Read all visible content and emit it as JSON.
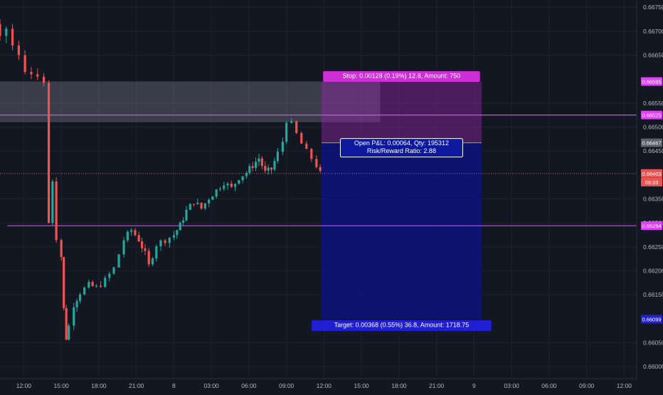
{
  "chart_data": {
    "type": "candlestick",
    "y_axis": {
      "range": [
        0.65975,
        0.66765
      ],
      "ticks": [
        "0.66750",
        "0.66700",
        "0.66650",
        "0.66550",
        "0.66500",
        "0.66450",
        "0.66350",
        "0.66300",
        "0.66250",
        "0.66200",
        "0.66150",
        "0.66050",
        "0.66000"
      ]
    },
    "x_axis": {
      "labels": [
        {
          "text": "12:00",
          "hours": 12
        },
        {
          "text": "15:00",
          "hours": 15
        },
        {
          "text": "18:00",
          "hours": 18
        },
        {
          "text": "21:00",
          "hours": 21
        },
        {
          "text": "8",
          "hours": 24
        },
        {
          "text": "03:00",
          "hours": 27
        },
        {
          "text": "06:00",
          "hours": 30
        },
        {
          "text": "09:00",
          "hours": 33
        },
        {
          "text": "12:00",
          "hours": 36
        },
        {
          "text": "15:00",
          "hours": 39
        },
        {
          "text": "18:00",
          "hours": 42
        },
        {
          "text": "21:00",
          "hours": 45
        },
        {
          "text": "9",
          "hours": 48
        },
        {
          "text": "03:00",
          "hours": 51
        },
        {
          "text": "06:00",
          "hours": 54
        },
        {
          "text": "09:00",
          "hours": 57
        },
        {
          "text": "12:00",
          "hours": 60
        }
      ],
      "range_hours": [
        10.1,
        61.0
      ]
    },
    "price_labels": [
      {
        "text": "0.66595",
        "value": 0.66595,
        "color": "#e040fb"
      },
      {
        "text": "0.66525",
        "value": 0.66525,
        "color": "#e040fb"
      },
      {
        "text": "0.66467",
        "value": 0.66467,
        "color": "#5d606b"
      },
      {
        "text": "0.66403",
        "value": 0.66403,
        "color": "#ef5350"
      },
      {
        "text": "09:33",
        "value": 0.66385,
        "color": "#ef5350"
      },
      {
        "text": "0.66294",
        "value": 0.66294,
        "color": "#e040fb"
      },
      {
        "text": "0.66099",
        "value": 0.66099,
        "color": "#2222cc"
      }
    ],
    "horizontal_lines": [
      {
        "value": 0.66525,
        "color": "#e040fb",
        "from_hours": 10.1
      },
      {
        "value": 0.66294,
        "color": "#e040fb",
        "from_hours": 10.7
      },
      {
        "value": 0.66403,
        "color": "#ef5350",
        "dotted": true,
        "from_hours": 10.1
      }
    ],
    "supply_zone": {
      "y_top": 0.66595,
      "y_bottom": 0.6651,
      "x_from_hours": 10.1,
      "x_to_hours": 40.5
    },
    "position": {
      "type": "long",
      "entry": 0.66467,
      "stop": 0.66595,
      "target": 0.66099,
      "x_from_hours": 35.8,
      "x_to_hours": 48.6,
      "stop_label": "Stop: 0.00128 (0.19%) 12.8, Amount: 750",
      "pnl_line1": "Open P&L: 0.00064, Qty: 195312",
      "pnl_line2": "Risk/Reward Ratio: 2.88",
      "target_label": "Target: 0.00368 (0.55%) 36.8, Amount: 1718.75"
    },
    "candles_intro": [
      {
        "t": 10.1,
        "o": 0.66715,
        "h": 0.66725,
        "l": 0.6668,
        "c": 0.6669
      },
      {
        "t": 10.6,
        "o": 0.6669,
        "h": 0.6671,
        "l": 0.66675,
        "c": 0.66705
      },
      {
        "t": 11.1,
        "o": 0.66705,
        "h": 0.66715,
        "l": 0.6666,
        "c": 0.6667
      },
      {
        "t": 11.6,
        "o": 0.6667,
        "h": 0.6668,
        "l": 0.6664,
        "c": 0.6665
      },
      {
        "t": 12.1,
        "o": 0.6665,
        "h": 0.6666,
        "l": 0.6661,
        "c": 0.66615
      },
      {
        "t": 12.6,
        "o": 0.66615,
        "h": 0.66625,
        "l": 0.666,
        "c": 0.6661
      },
      {
        "t": 13.1,
        "o": 0.6661,
        "h": 0.66622,
        "l": 0.66598,
        "c": 0.66605
      },
      {
        "t": 13.6,
        "o": 0.66605,
        "h": 0.66612,
        "l": 0.66585,
        "c": 0.66592
      }
    ],
    "path_points": [
      [
        13.9,
        0.66592
      ],
      [
        14.0,
        0.663
      ],
      [
        14.3,
        0.6639
      ],
      [
        14.6,
        0.6627
      ],
      [
        15.0,
        0.6623
      ],
      [
        15.2,
        0.6612
      ],
      [
        15.4,
        0.6606
      ],
      [
        15.6,
        0.66085
      ],
      [
        16.0,
        0.6613
      ],
      [
        16.5,
        0.66155
      ],
      [
        17.2,
        0.6617
      ],
      [
        17.8,
        0.66165
      ],
      [
        18.5,
        0.6618
      ],
      [
        19.2,
        0.66205
      ],
      [
        20.0,
        0.66265
      ],
      [
        20.6,
        0.66285
      ],
      [
        21.2,
        0.66265
      ],
      [
        21.7,
        0.66235
      ],
      [
        22.0,
        0.6621
      ],
      [
        22.6,
        0.66255
      ],
      [
        23.3,
        0.66265
      ],
      [
        24.0,
        0.66275
      ],
      [
        24.5,
        0.66295
      ],
      [
        25.0,
        0.66325
      ],
      [
        25.6,
        0.66345
      ],
      [
        26.2,
        0.6633
      ],
      [
        26.8,
        0.66352
      ],
      [
        27.4,
        0.66368
      ],
      [
        28.0,
        0.66385
      ],
      [
        28.6,
        0.66372
      ],
      [
        29.2,
        0.66395
      ],
      [
        29.8,
        0.66405
      ],
      [
        30.3,
        0.6642
      ],
      [
        30.8,
        0.66435
      ],
      [
        31.3,
        0.66405
      ],
      [
        31.8,
        0.66412
      ],
      [
        32.3,
        0.66445
      ],
      [
        32.7,
        0.6647
      ],
      [
        33.0,
        0.66515
      ],
      [
        33.4,
        0.66505
      ],
      [
        33.8,
        0.66485
      ],
      [
        34.2,
        0.66465
      ],
      [
        34.6,
        0.66448
      ],
      [
        35.0,
        0.66435
      ],
      [
        35.4,
        0.6642
      ],
      [
        35.7,
        0.66403
      ]
    ]
  }
}
